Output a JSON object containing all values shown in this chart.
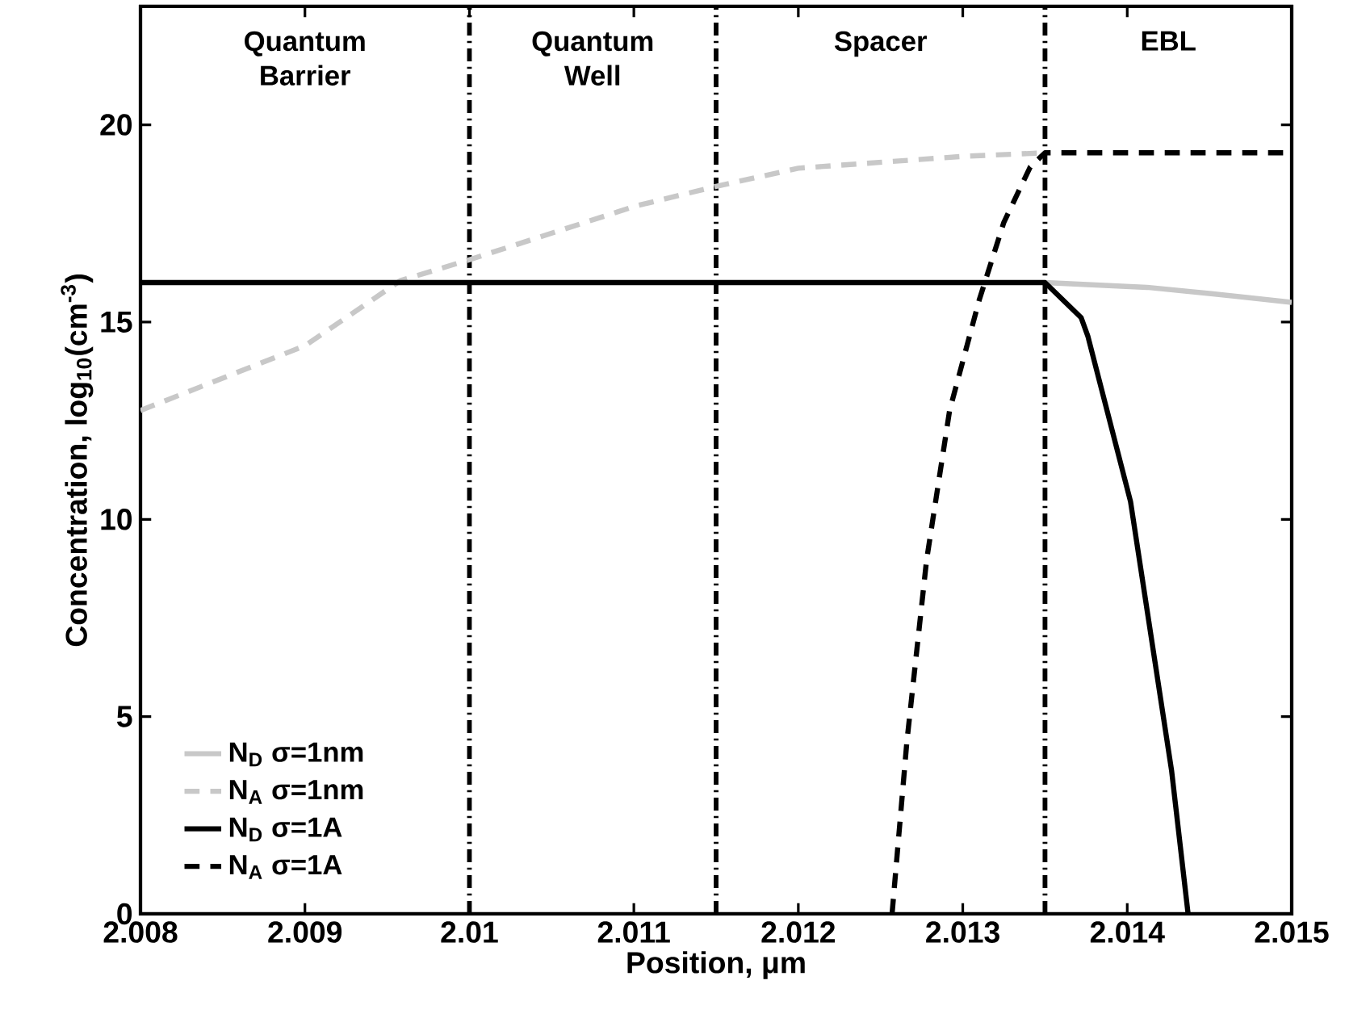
{
  "chart_data": {
    "type": "line",
    "xlabel": "Position, μm",
    "ylabel": "Concentration, log$_{10}$(cm$^{-3}$)",
    "xlim": [
      2.008,
      2.015
    ],
    "ylim": [
      0,
      23
    ],
    "xticks": [
      2.008,
      2.009,
      2.01,
      2.011,
      2.012,
      2.013,
      2.014,
      2.015
    ],
    "yticks": [
      0,
      5,
      10,
      15,
      20
    ],
    "legend": "bottom left",
    "marker": "none",
    "series": [
      {
        "name": "N$_{D}$ σ=1nm",
        "color": "#c8c8c8",
        "line_style": "solid",
        "x": [
          2.0135,
          2.01412,
          2.01451,
          2.015
        ],
        "values": [
          16.0,
          15.88,
          15.72,
          15.5
        ]
      },
      {
        "name": "N$_{A}$ σ=1nm",
        "color": "#c8c8c8",
        "line_style": "dashed",
        "x": [
          2.008,
          2.009,
          2.00958,
          2.01,
          2.01101,
          2.0115,
          2.012,
          2.013,
          2.0135
        ],
        "values": [
          12.76,
          14.4,
          16.05,
          16.58,
          17.94,
          18.44,
          18.9,
          19.2,
          19.29
        ]
      },
      {
        "name": "N$_{D}$ σ=1A",
        "color": "#000000",
        "line_style": "solid",
        "x": [
          2.008,
          2.0135,
          2.01372,
          2.01376,
          2.01402,
          2.01427,
          2.01437
        ],
        "values": [
          16.0,
          16.0,
          15.11,
          14.65,
          10.45,
          3.62,
          0
        ]
      },
      {
        "name": "N$_{A}$ σ=1A",
        "color": "#000000",
        "line_style": "dashed",
        "x": [
          2.01257,
          2.01266,
          2.01278,
          2.01292,
          2.0131,
          2.01325,
          2.01341,
          2.0135,
          2.015
        ],
        "values": [
          0,
          4.36,
          8.97,
          12.76,
          15.56,
          17.53,
          18.93,
          19.29,
          19.29
        ]
      }
    ],
    "ref_lines": [
      {
        "axis": "x",
        "value": 2.01,
        "color": "#000000",
        "line_style": "dashdot"
      },
      {
        "axis": "x",
        "value": 2.0115,
        "color": "#000000",
        "line_style": "dashdot"
      },
      {
        "axis": "x",
        "value": 2.0135,
        "color": "#000000",
        "line_style": "dashdot"
      }
    ],
    "annotations": [
      "Quantum Barrier",
      "Quantum Well",
      "Spacer",
      "EBL"
    ]
  }
}
